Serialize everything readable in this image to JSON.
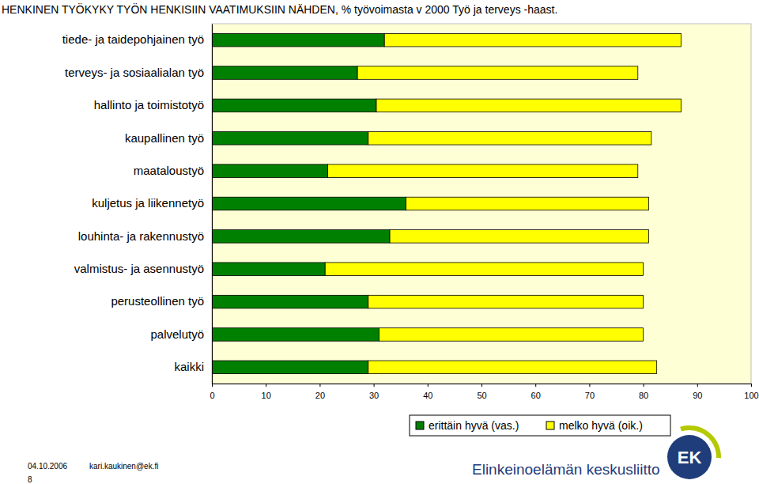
{
  "chart_data": {
    "type": "bar",
    "orientation": "horizontal",
    "stacked": true,
    "title": "HENKINEN TYÖKYKY TYÖN HENKISIIN VAATIMUKSIIN NÄHDEN, % työvoimasta v 2000 Työ ja terveys -haast.",
    "categories": [
      "tiede- ja taidepohjainen työ",
      "terveys- ja sosiaalialan työ",
      "hallinto ja toimistotyö",
      "kaupallinen työ",
      "maataloustyö",
      "kuljetus ja liikennetyö",
      "louhinta- ja rakennustyö",
      "valmistus- ja asennustyö",
      "perusteollinen työ",
      "palvelutyö",
      "kaikki"
    ],
    "series": [
      {
        "name": "erittäin hyvä (vas.)",
        "color": "#008000",
        "values": [
          32,
          27,
          30.5,
          29,
          21.5,
          36,
          33,
          21,
          29,
          31,
          29
        ]
      },
      {
        "name": "melko hyvä (oik.)",
        "color": "#ffff00",
        "values": [
          55,
          52,
          56.5,
          52.5,
          57.5,
          45,
          48,
          59,
          51,
          49,
          53.5
        ]
      }
    ],
    "xlim": [
      0,
      100
    ],
    "xticks": [
      0,
      10,
      20,
      30,
      40,
      50,
      60,
      70,
      80,
      90,
      100
    ],
    "grid": false,
    "legend": "bottom"
  },
  "footer": {
    "date": "04.10.2006",
    "email": "kari.kaukinen@ek.fi",
    "page": "8",
    "organization": "Elinkeinoelämän keskusliitto",
    "logo": "EK"
  }
}
